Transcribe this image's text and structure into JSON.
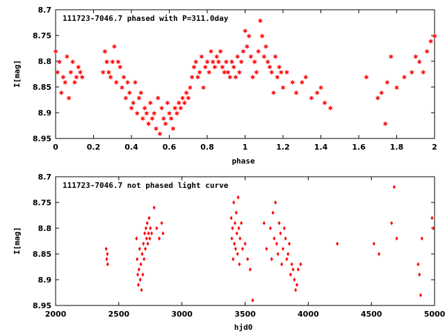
{
  "chart_data": [
    {
      "type": "scatter",
      "title": "111723-7046.7 phased with P=311.0day",
      "xlabel": "phase",
      "ylabel": "I[mag]",
      "xlim": [
        0,
        2
      ],
      "ylim": [
        8.95,
        8.7
      ],
      "y_inverted": true,
      "x_ticks": [
        "0",
        "0.2",
        "0.4",
        "0.6",
        "0.8",
        "1",
        "1.2",
        "1.4",
        "1.6",
        "1.8",
        "2"
      ],
      "y_ticks": [
        "8.7",
        "8.75",
        "8.8",
        "8.85",
        "8.9",
        "8.95"
      ],
      "marker": "star",
      "color": "#ff0000",
      "grid": false,
      "series": [
        {
          "x": [
            0.0,
            0.01,
            0.02,
            0.03,
            0.04,
            0.05,
            0.06,
            0.07,
            0.08,
            0.09,
            0.1,
            0.11,
            0.12,
            0.13,
            0.14,
            0.25,
            0.26,
            0.27,
            0.28,
            0.29,
            0.3,
            0.31,
            0.32,
            0.33,
            0.34,
            0.35,
            0.36,
            0.37,
            0.38,
            0.39,
            0.4,
            0.41,
            0.42,
            0.43,
            0.44,
            0.45,
            0.46,
            0.47,
            0.48,
            0.49,
            0.5,
            0.51,
            0.52,
            0.53,
            0.54,
            0.55,
            0.56,
            0.57,
            0.58,
            0.59,
            0.6,
            0.61,
            0.62,
            0.63,
            0.64,
            0.65,
            0.66,
            0.67,
            0.68,
            0.69,
            0.7,
            0.71,
            0.72,
            0.73,
            0.74,
            0.75,
            0.76,
            0.77,
            0.78,
            0.79,
            0.8,
            0.81,
            0.82,
            0.83,
            0.84,
            0.85,
            0.86,
            0.87,
            0.88,
            0.89,
            0.9,
            0.91,
            0.92,
            0.93,
            0.94,
            0.95,
            0.96,
            0.97,
            0.98,
            0.99,
            1.0,
            1.01,
            1.02,
            1.03,
            1.04,
            1.05,
            1.06,
            1.07,
            1.08,
            1.09,
            1.1,
            1.11,
            1.12,
            1.13,
            1.14,
            1.15,
            1.16,
            1.17,
            1.18,
            1.19,
            1.2,
            1.22,
            1.25,
            1.27,
            1.3,
            1.32,
            1.35,
            1.38,
            1.4,
            1.42,
            1.45,
            1.64,
            1.7,
            1.72,
            1.74,
            1.75,
            1.77,
            1.8,
            1.84,
            1.88,
            1.9,
            1.92,
            1.94,
            1.96,
            1.98,
            2.0
          ],
          "y": [
            8.78,
            8.82,
            8.8,
            8.86,
            8.83,
            8.84,
            8.79,
            8.87,
            8.82,
            8.8,
            8.84,
            8.83,
            8.81,
            8.82,
            8.83,
            8.82,
            8.78,
            8.8,
            8.82,
            8.83,
            8.8,
            8.77,
            8.84,
            8.8,
            8.81,
            8.85,
            8.83,
            8.87,
            8.84,
            8.86,
            8.89,
            8.88,
            8.84,
            8.9,
            8.87,
            8.86,
            8.91,
            8.89,
            8.9,
            8.92,
            8.88,
            8.91,
            8.9,
            8.93,
            8.87,
            8.94,
            8.89,
            8.91,
            8.92,
            8.88,
            8.9,
            8.91,
            8.93,
            8.89,
            8.9,
            8.88,
            8.89,
            8.87,
            8.88,
            8.86,
            8.87,
            8.85,
            8.83,
            8.81,
            8.8,
            8.83,
            8.82,
            8.79,
            8.85,
            8.81,
            8.8,
            8.82,
            8.78,
            8.8,
            8.81,
            8.79,
            8.8,
            8.78,
            8.81,
            8.82,
            8.8,
            8.82,
            8.83,
            8.8,
            8.81,
            8.83,
            8.79,
            8.82,
            8.8,
            8.78,
            8.74,
            8.77,
            8.75,
            8.79,
            8.83,
            8.8,
            8.82,
            8.78,
            8.72,
            8.75,
            8.79,
            8.77,
            8.8,
            8.81,
            8.82,
            8.86,
            8.79,
            8.83,
            8.81,
            8.82,
            8.85,
            8.82,
            8.84,
            8.86,
            8.84,
            8.83,
            8.87,
            8.86,
            8.85,
            8.88,
            8.89,
            8.83,
            8.87,
            8.86,
            8.92,
            8.84,
            8.79,
            8.85,
            8.83,
            8.82,
            8.79,
            8.8,
            8.82,
            8.78,
            8.76,
            8.75
          ],
          "name": ""
        }
      ]
    },
    {
      "type": "scatter",
      "title": "111723-7046.7 not phased light curve",
      "xlabel": "hjd0",
      "ylabel": "I[mag]",
      "xlim": [
        2000,
        5000
      ],
      "ylim": [
        8.95,
        8.7
      ],
      "y_inverted": true,
      "x_ticks": [
        "2000",
        "2500",
        "3000",
        "3500",
        "4000",
        "4500",
        "5000"
      ],
      "y_ticks": [
        "8.7",
        "8.75",
        "8.8",
        "8.85",
        "8.9",
        "8.95"
      ],
      "marker": "diamond",
      "color": "#ff0000",
      "grid": false,
      "series": [
        {
          "x": [
            2400,
            2405,
            2410,
            2412,
            2640,
            2645,
            2650,
            2655,
            2660,
            2665,
            2670,
            2675,
            2680,
            2685,
            2690,
            2695,
            2700,
            2705,
            2710,
            2715,
            2720,
            2725,
            2730,
            2735,
            2740,
            2745,
            2750,
            2760,
            2780,
            2800,
            2820,
            2840,
            2850,
            3390,
            3395,
            3400,
            3405,
            3410,
            3415,
            3420,
            3425,
            3430,
            3435,
            3440,
            3445,
            3450,
            3455,
            3460,
            3470,
            3480,
            3500,
            3520,
            3540,
            3560,
            3650,
            3670,
            3700,
            3710,
            3720,
            3730,
            3740,
            3750,
            3760,
            3770,
            3780,
            3790,
            3800,
            3810,
            3820,
            3830,
            3840,
            3850,
            3860,
            3870,
            3880,
            3890,
            3900,
            3910,
            3920,
            3940,
            4230,
            4520,
            4560,
            4660,
            4680,
            4700,
            4870,
            4880,
            4890,
            4900,
            4980,
            4990
          ],
          "y": [
            8.84,
            8.86,
            8.85,
            8.87,
            8.82,
            8.86,
            8.89,
            8.91,
            8.88,
            8.84,
            8.9,
            8.87,
            8.92,
            8.85,
            8.89,
            8.83,
            8.86,
            8.81,
            8.84,
            8.8,
            8.82,
            8.79,
            8.83,
            8.81,
            8.78,
            8.82,
            8.8,
            8.81,
            8.76,
            8.8,
            8.82,
            8.79,
            8.81,
            8.78,
            8.82,
            8.8,
            8.86,
            8.75,
            8.83,
            8.79,
            8.84,
            8.77,
            8.81,
            8.85,
            8.74,
            8.8,
            8.87,
            8.82,
            8.79,
            8.84,
            8.83,
            8.86,
            8.88,
            8.94,
            8.79,
            8.84,
            8.8,
            8.86,
            8.77,
            8.82,
            8.75,
            8.83,
            8.85,
            8.79,
            8.81,
            8.87,
            8.84,
            8.8,
            8.82,
            8.86,
            8.85,
            8.83,
            8.89,
            8.87,
            8.88,
            8.9,
            8.92,
            8.91,
            8.88,
            8.87,
            8.83,
            8.83,
            8.85,
            8.79,
            8.72,
            8.82,
            8.87,
            8.89,
            8.93,
            8.82,
            8.78,
            8.8
          ],
          "name": ""
        }
      ]
    }
  ]
}
